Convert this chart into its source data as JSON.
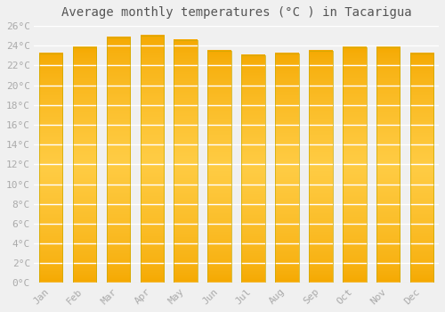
{
  "title": "Average monthly temperatures (°C ) in Tacarigua",
  "months": [
    "Jan",
    "Feb",
    "Mar",
    "Apr",
    "May",
    "Jun",
    "Jul",
    "Aug",
    "Sep",
    "Oct",
    "Nov",
    "Dec"
  ],
  "values": [
    23.2,
    23.8,
    24.8,
    25.0,
    24.6,
    23.5,
    23.0,
    23.2,
    23.5,
    23.8,
    23.8,
    23.2
  ],
  "bar_color_bottom": "#F5A800",
  "bar_color_mid": "#FFCC44",
  "bar_color_top": "#F5A800",
  "bar_edge_color": "#CCAA00",
  "background_color": "#F0F0F0",
  "grid_color": "#FFFFFF",
  "title_fontsize": 10,
  "tick_label_color": "#AAAAAA",
  "tick_label_fontsize": 8,
  "ylim": [
    0,
    26
  ],
  "ytick_step": 2,
  "bar_width": 0.7
}
